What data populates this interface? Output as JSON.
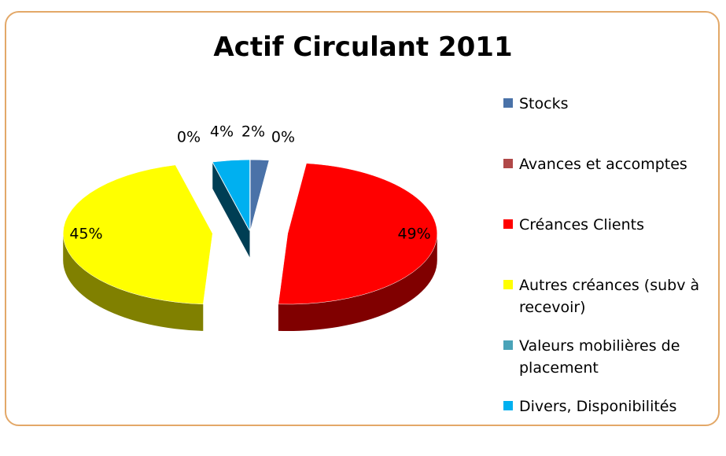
{
  "chart_data": {
    "type": "pie",
    "title": "Actif Circulant 2011",
    "categories": [
      "Stocks",
      "Avances et accomptes",
      "Créances Clients",
      "Autres créances (subv à recevoir)",
      "Valeurs mobilières de placement",
      "Divers, Disponibilités"
    ],
    "values": [
      2,
      0,
      49,
      45,
      0,
      4
    ],
    "value_labels": [
      "2%",
      "0%",
      "49%",
      "45%",
      "0%",
      "4%"
    ],
    "colors": [
      "#4a72a8",
      "#b04848",
      "#ff0000",
      "#ffff00",
      "#4aa3b8",
      "#00b0f0"
    ],
    "legend": "right"
  }
}
